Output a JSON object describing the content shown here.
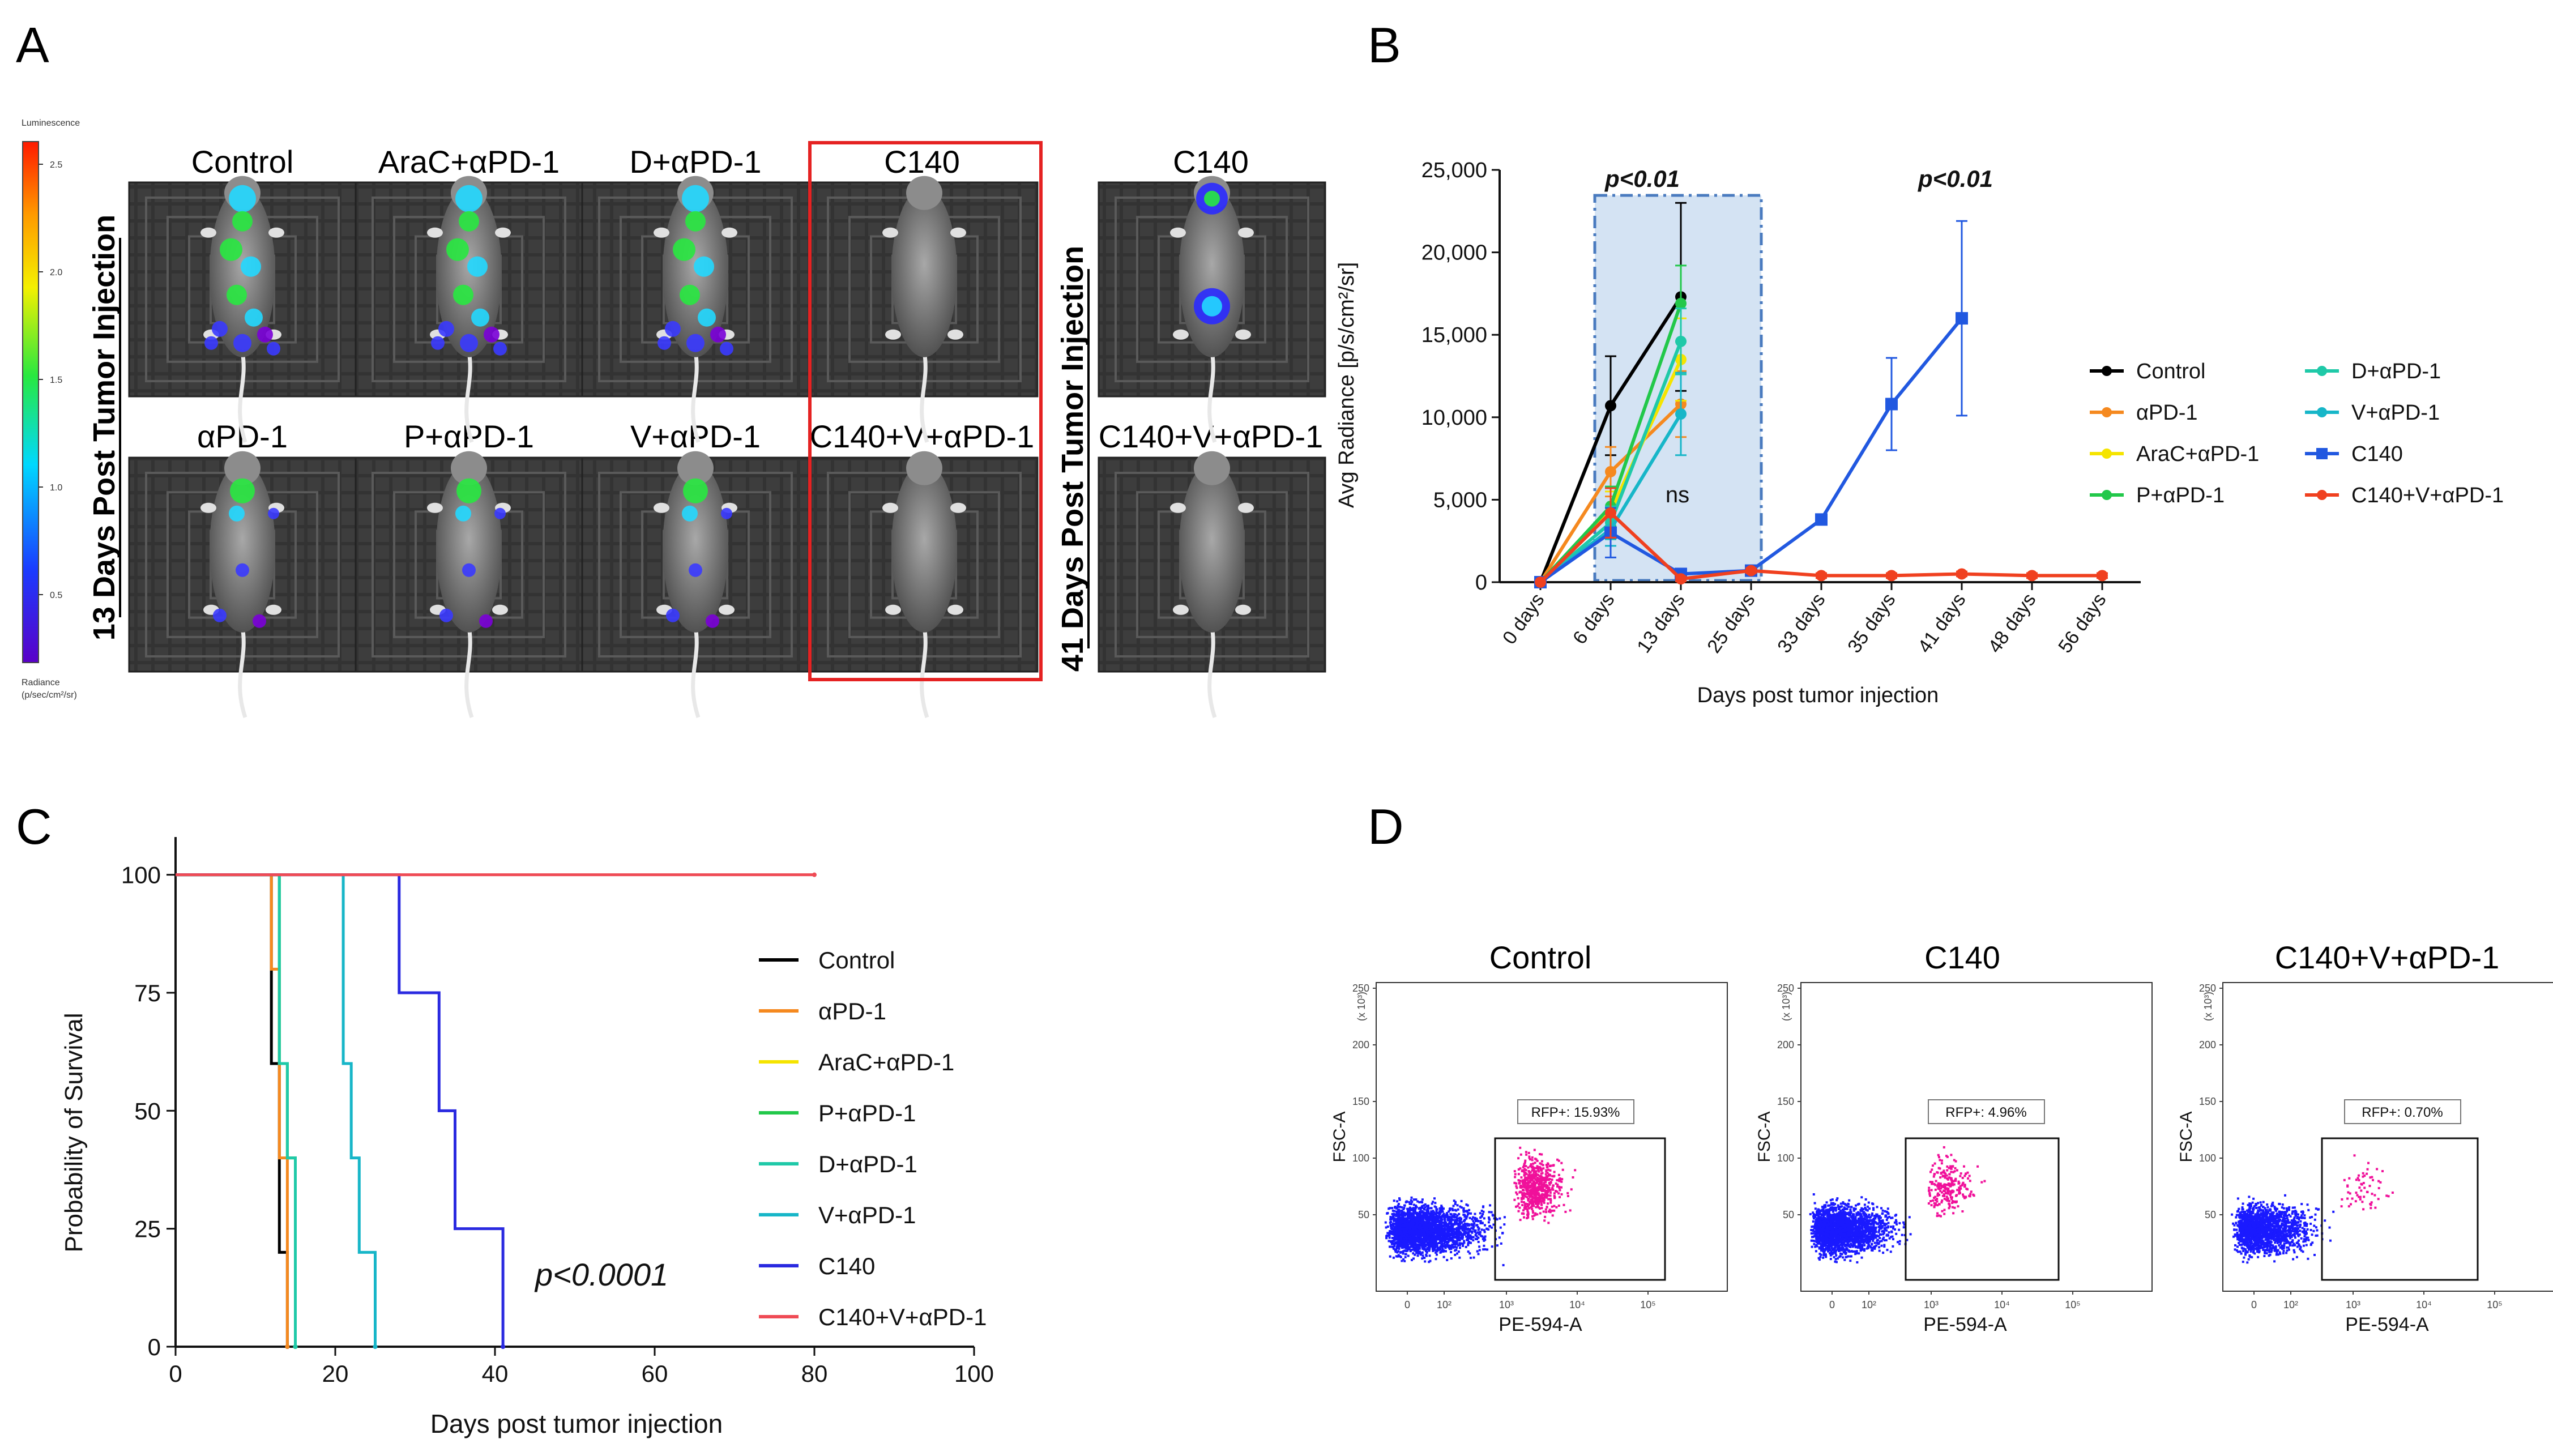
{
  "panel_letters": {
    "a": "A",
    "b": "B",
    "c": "C",
    "d": "D"
  },
  "panel_a": {
    "colorbar": {
      "title": "Luminescence",
      "ticks": [
        "2.5",
        "2.0",
        "1.5",
        "1.0",
        "0.5"
      ],
      "footer_line1": "Radiance",
      "footer_line2": "(p/sec/cm²/sr)"
    },
    "side_label_left": "13 Days Post Tumor Injection",
    "side_label_right": "41 Days Post Tumor Injection",
    "top_row_labels": [
      "Control",
      "AraC+αPD-1",
      "D+αPD-1",
      "C140"
    ],
    "bottom_row_labels": [
      "αPD-1",
      "P+αPD-1",
      "V+αPD-1",
      "C140+V+αPD-1"
    ],
    "right_top_label": "C140",
    "right_bottom_label": "C140+V+αPD-1"
  },
  "panel_d": {
    "plots": [
      {
        "title": "Control",
        "gate_label": "RFP+: 15.93%"
      },
      {
        "title": "C140",
        "gate_label": "RFP+: 4.96%"
      },
      {
        "title": "C140+V+αPD-1",
        "gate_label": "RFP+: 0.70%"
      }
    ],
    "ylabel": "FSC-A",
    "xlabel": "PE-594-A",
    "y_unit": "(x 10³)",
    "yticks": [
      "250",
      "200",
      "150",
      "100",
      "50"
    ],
    "xticks": [
      "0",
      "10²",
      "10³",
      "10⁴",
      "10⁵"
    ]
  },
  "chart_data": [
    {
      "panel": "B",
      "type": "line",
      "xlabel": "Days post tumor injection",
      "ylabel": "Avg Radiance [p/s/cm²/sr]",
      "categories": [
        "0 days",
        "6 days",
        "13 days",
        "25 days",
        "33 days",
        "35 days",
        "41 days",
        "48 days",
        "56 days"
      ],
      "ylim": [
        0,
        25000
      ],
      "yticks": [
        0,
        5000,
        10000,
        15000,
        20000,
        25000
      ],
      "ytick_labels": [
        "0",
        "5,000",
        "10,000",
        "15,000",
        "20,000",
        "25,000"
      ],
      "annotations": [
        "p<0.01",
        "ns",
        "p<0.01"
      ],
      "legend_position": "right",
      "series": [
        {
          "name": "Control",
          "color": "#000000",
          "marker": "circle",
          "values": [
            0,
            10700,
            17300,
            null,
            null,
            null,
            null,
            null,
            null
          ],
          "errors": [
            0,
            3000,
            5700,
            null,
            null,
            null,
            null,
            null,
            null
          ]
        },
        {
          "name": "αPD-1",
          "color": "#f5891f",
          "marker": "circle",
          "values": [
            0,
            6700,
            10800,
            null,
            null,
            null,
            null,
            null,
            null
          ],
          "errors": [
            0,
            1500,
            2000,
            null,
            null,
            null,
            null,
            null,
            null
          ]
        },
        {
          "name": "AraC+αPD-1",
          "color": "#f5e400",
          "marker": "circle",
          "values": [
            0,
            4300,
            13500,
            null,
            null,
            null,
            null,
            null,
            null
          ],
          "errors": [
            0,
            1200,
            2500,
            null,
            null,
            null,
            null,
            null,
            null
          ]
        },
        {
          "name": "P+αPD-1",
          "color": "#22c84a",
          "marker": "circle",
          "values": [
            0,
            4600,
            16900,
            null,
            null,
            null,
            null,
            null,
            null
          ],
          "errors": [
            0,
            1200,
            2300,
            null,
            null,
            null,
            null,
            null,
            null
          ]
        },
        {
          "name": "D+αPD-1",
          "color": "#1fc9a8",
          "marker": "circle",
          "values": [
            0,
            3600,
            14600,
            null,
            null,
            null,
            null,
            null,
            null
          ],
          "errors": [
            0,
            1000,
            2000,
            null,
            null,
            null,
            null,
            null,
            null
          ]
        },
        {
          "name": "V+αPD-1",
          "color": "#17b6c8",
          "marker": "circle",
          "values": [
            0,
            3200,
            10200,
            null,
            null,
            null,
            null,
            null,
            null
          ],
          "errors": [
            0,
            1000,
            2500,
            null,
            null,
            null,
            null,
            null,
            null
          ]
        },
        {
          "name": "C140",
          "color": "#2158e0",
          "marker": "square",
          "values": [
            0,
            3000,
            500,
            700,
            3800,
            10800,
            16000,
            null,
            null
          ],
          "errors": [
            0,
            1500,
            200,
            200,
            300,
            2800,
            5900,
            null,
            null
          ]
        },
        {
          "name": "C140+V+αPD-1",
          "color": "#f0401f",
          "marker": "circle",
          "values": [
            0,
            4200,
            200,
            700,
            400,
            400,
            500,
            400,
            400
          ],
          "errors": [
            0,
            1500,
            150,
            150,
            150,
            150,
            150,
            150,
            150
          ]
        }
      ]
    },
    {
      "panel": "C",
      "type": "line",
      "xlabel": "Days post tumor injection",
      "ylabel": "Probability of Survival",
      "xlim": [
        0,
        100
      ],
      "ylim": [
        0,
        100
      ],
      "xticks": [
        0,
        20,
        40,
        60,
        80,
        100
      ],
      "yticks": [
        0,
        25,
        50,
        75,
        100
      ],
      "annotation": "p<0.0001",
      "legend_position": "right",
      "series": [
        {
          "name": "Control",
          "color": "#000000",
          "steps": [
            [
              0,
              100
            ],
            [
              12,
              100
            ],
            [
              12,
              60
            ],
            [
              13,
              60
            ],
            [
              13,
              20
            ],
            [
              14,
              20
            ],
            [
              14,
              0
            ]
          ]
        },
        {
          "name": "αPD-1",
          "color": "#f5891f",
          "steps": [
            [
              0,
              100
            ],
            [
              12,
              100
            ],
            [
              12,
              80
            ],
            [
              13,
              80
            ],
            [
              13,
              40
            ],
            [
              14,
              40
            ],
            [
              14,
              0
            ]
          ]
        },
        {
          "name": "AraC+αPD-1",
          "color": "#f5e400",
          "steps": [
            [
              0,
              100
            ],
            [
              13,
              100
            ],
            [
              13,
              60
            ],
            [
              14,
              60
            ],
            [
              14,
              40
            ],
            [
              15,
              40
            ],
            [
              15,
              0
            ]
          ]
        },
        {
          "name": "P+αPD-1",
          "color": "#22c84a",
          "steps": [
            [
              0,
              100
            ],
            [
              13,
              100
            ],
            [
              13,
              60
            ],
            [
              14,
              60
            ],
            [
              14,
              40
            ],
            [
              15,
              40
            ],
            [
              15,
              0
            ]
          ]
        },
        {
          "name": "D+αPD-1",
          "color": "#1fc9a8",
          "steps": [
            [
              0,
              100
            ],
            [
              13,
              100
            ],
            [
              13,
              60
            ],
            [
              14,
              60
            ],
            [
              14,
              40
            ],
            [
              15,
              40
            ],
            [
              15,
              0
            ]
          ]
        },
        {
          "name": "V+αPD-1",
          "color": "#17b6c8",
          "steps": [
            [
              0,
              100
            ],
            [
              21,
              100
            ],
            [
              21,
              60
            ],
            [
              22,
              60
            ],
            [
              22,
              40
            ],
            [
              23,
              40
            ],
            [
              23,
              20
            ],
            [
              25,
              20
            ],
            [
              25,
              0
            ]
          ]
        },
        {
          "name": "C140",
          "color": "#2a2ae0",
          "steps": [
            [
              0,
              100
            ],
            [
              28,
              100
            ],
            [
              28,
              75
            ],
            [
              33,
              75
            ],
            [
              33,
              50
            ],
            [
              35,
              50
            ],
            [
              35,
              25
            ],
            [
              41,
              25
            ],
            [
              41,
              0
            ]
          ]
        },
        {
          "name": "C140+V+αPD-1",
          "color": "#ef4b55",
          "steps": [
            [
              0,
              100
            ],
            [
              80,
              100
            ]
          ]
        }
      ]
    }
  ]
}
